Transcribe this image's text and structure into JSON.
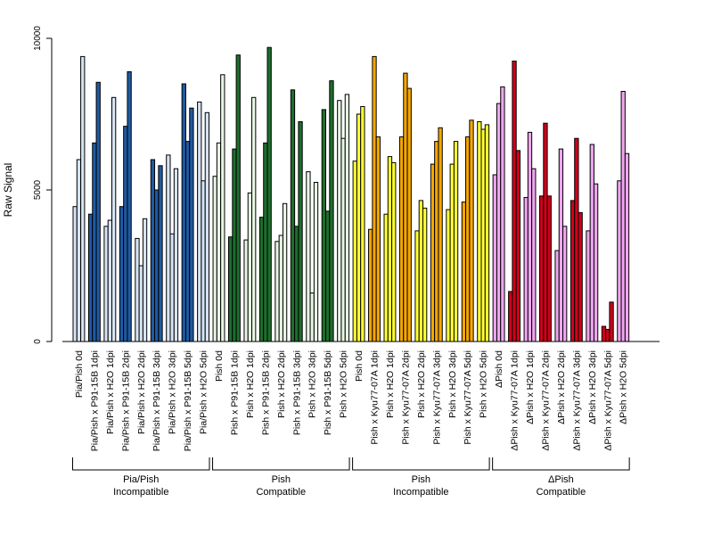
{
  "chart_data": {
    "type": "bar",
    "xlabel": "",
    "ylabel": "Raw Signal",
    "ylim": [
      0,
      10000
    ],
    "y_ticks": [
      0,
      5000,
      10000
    ],
    "grid": false,
    "legend": "none",
    "colors": {
      "pia_light": "#d6e4f3",
      "pia_dark": "#1f5aa3",
      "pish_light": "#e8f6e4",
      "pish_dark": "#1e6e2d",
      "kyu_light": "#ffff33",
      "kyu_dark": "#f5a700",
      "dpish_light": "#f0a6f0",
      "dpish_dark": "#d0001a"
    },
    "categories": [
      {
        "label": "Pia/Pish 0d",
        "values": [
          4450,
          6000,
          9400
        ],
        "color": "pia_light"
      },
      {
        "label": "Pia/Pish x P91-15B 1dpi",
        "values": [
          4200,
          6550,
          8550
        ],
        "color": "pia_dark"
      },
      {
        "label": "Pia/Pish x H2O 1dpi",
        "values": [
          3800,
          4000,
          8050
        ],
        "color": "pia_light"
      },
      {
        "label": "Pia/Pish x P91-15B 2dpi",
        "values": [
          4450,
          7100,
          8900
        ],
        "color": "pia_dark"
      },
      {
        "label": "Pia/Pish x H2O 2dpi",
        "values": [
          3400,
          2500,
          4050
        ],
        "color": "pia_light"
      },
      {
        "label": "Pia/Pish x P91-15B 3dpi",
        "values": [
          6000,
          5000,
          5800
        ],
        "color": "pia_dark"
      },
      {
        "label": "Pia/Pish x H2O 3dpi",
        "values": [
          6150,
          3550,
          5700
        ],
        "color": "pia_light"
      },
      {
        "label": "Pia/Pish x P91-15B 5dpi",
        "values": [
          8500,
          6600,
          7700
        ],
        "color": "pia_dark"
      },
      {
        "label": "Pia/Pish x H2O 5dpi",
        "values": [
          7900,
          5300,
          7550
        ],
        "color": "pia_light"
      },
      {
        "label": "Pish 0d",
        "values": [
          5450,
          6550,
          8800
        ],
        "color": "pish_light"
      },
      {
        "label": "Pish x P91-15B 1dpi",
        "values": [
          3450,
          6350,
          9450
        ],
        "color": "pish_dark"
      },
      {
        "label": "Pish x H2O 1dpi",
        "values": [
          3350,
          4900,
          8050
        ],
        "color": "pish_light"
      },
      {
        "label": "Pish x P91-15B 2dpi",
        "values": [
          4100,
          6550,
          9700
        ],
        "color": "pish_dark"
      },
      {
        "label": "Pish x H2O 2dpi",
        "values": [
          3300,
          3500,
          4550
        ],
        "color": "pish_light"
      },
      {
        "label": "Pish x P91-15B 3dpi",
        "values": [
          8300,
          3800,
          7250
        ],
        "color": "pish_dark"
      },
      {
        "label": "Pish x H2O 3dpi",
        "values": [
          5600,
          1600,
          5250
        ],
        "color": "pish_light"
      },
      {
        "label": "Pish x P91-15B 5dpi",
        "values": [
          7650,
          4300,
          8600
        ],
        "color": "pish_dark"
      },
      {
        "label": "Pish x H2O 5dpi",
        "values": [
          7950,
          6700,
          8150
        ],
        "color": "pish_light"
      },
      {
        "label": "Pish 0d",
        "values": [
          5950,
          7500,
          7750
        ],
        "color": "kyu_light"
      },
      {
        "label": "Pish x Kyu77-07A 1dpi",
        "values": [
          3700,
          9400,
          6750
        ],
        "color": "kyu_dark"
      },
      {
        "label": "Pish x H2O 1dpi",
        "values": [
          4200,
          6100,
          5900
        ],
        "color": "kyu_light"
      },
      {
        "label": "Pish x Kyu77-07A 2dpi",
        "values": [
          6750,
          8850,
          8350
        ],
        "color": "kyu_dark"
      },
      {
        "label": "Pish x H2O 2dpi",
        "values": [
          3650,
          4650,
          4400
        ],
        "color": "kyu_light"
      },
      {
        "label": "Pish x Kyu77-07A 3dpi",
        "values": [
          5850,
          6600,
          7050
        ],
        "color": "kyu_dark"
      },
      {
        "label": "Pish x H2O 3dpi",
        "values": [
          4350,
          5850,
          6600
        ],
        "color": "kyu_light"
      },
      {
        "label": "Pish x Kyu77-07A 5dpi",
        "values": [
          4600,
          6750,
          7300
        ],
        "color": "kyu_dark"
      },
      {
        "label": "Pish x H2O 5dpi",
        "values": [
          7250,
          7000,
          7150
        ],
        "color": "kyu_light"
      },
      {
        "label": "ΔPish 0d",
        "values": [
          5500,
          7850,
          8400
        ],
        "color": "dpish_light"
      },
      {
        "label": "ΔPish x Kyu77-07A 1dpi",
        "values": [
          1650,
          9250,
          6300
        ],
        "color": "dpish_dark"
      },
      {
        "label": "ΔPish x H2O 1dpi",
        "values": [
          4750,
          6900,
          5700
        ],
        "color": "dpish_light"
      },
      {
        "label": "ΔPish x Kyu77-07A 2dpi",
        "values": [
          4800,
          7200,
          4800
        ],
        "color": "dpish_dark"
      },
      {
        "label": "ΔPish x H2O 2dpi",
        "values": [
          3000,
          6350,
          3800
        ],
        "color": "dpish_light"
      },
      {
        "label": "ΔPish x Kyu77-07A 3dpi",
        "values": [
          4650,
          6700,
          4250
        ],
        "color": "dpish_dark"
      },
      {
        "label": "ΔPish x H2O 3dpi",
        "values": [
          3650,
          6500,
          5200
        ],
        "color": "dpish_light"
      },
      {
        "label": "ΔPish x Kyu77-07A 5dpi",
        "values": [
          500,
          400,
          1300
        ],
        "color": "dpish_dark"
      },
      {
        "label": "ΔPish x H2O 5dpi",
        "values": [
          5300,
          8250,
          6200
        ],
        "color": "dpish_light"
      }
    ],
    "groups": [
      {
        "start": 0,
        "end": 8,
        "line1": "Pia/Pish",
        "line2": "Incompatible"
      },
      {
        "start": 9,
        "end": 17,
        "line1": "Pish",
        "line2": "Compatible"
      },
      {
        "start": 18,
        "end": 26,
        "line1": "Pish",
        "line2": "Incompatible"
      },
      {
        "start": 27,
        "end": 35,
        "line1": "ΔPish",
        "line2": "Compatible"
      }
    ]
  }
}
